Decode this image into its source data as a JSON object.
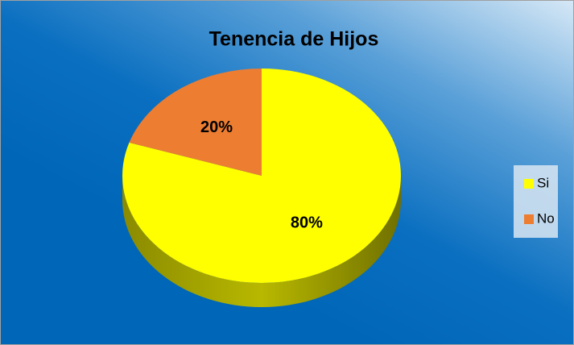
{
  "chart_data": {
    "type": "pie",
    "title": "Tenencia de Hijos",
    "categories": [
      "Si",
      "No"
    ],
    "values": [
      80,
      20
    ],
    "value_labels": [
      "80%",
      "20%"
    ],
    "colors": [
      "#ffff00",
      "#ed7d31"
    ],
    "legend": "right"
  }
}
